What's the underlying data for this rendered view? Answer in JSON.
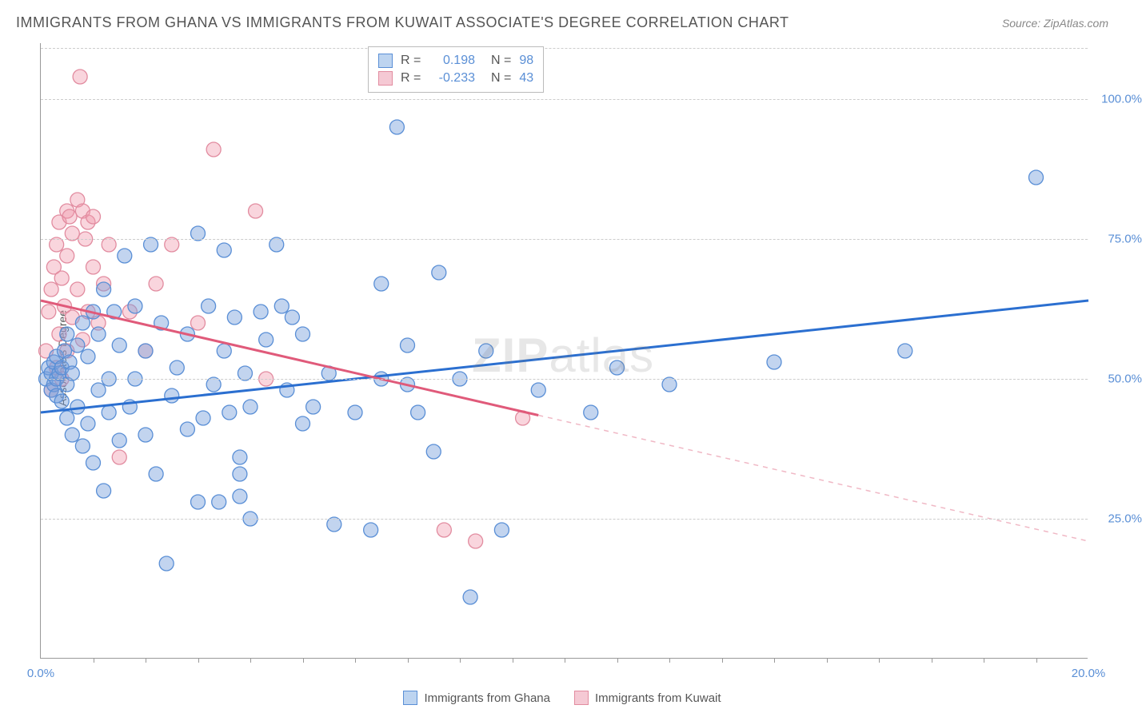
{
  "header": {
    "title": "IMMIGRANTS FROM GHANA VS IMMIGRANTS FROM KUWAIT ASSOCIATE'S DEGREE CORRELATION CHART",
    "source": "Source: ZipAtlas.com"
  },
  "chart": {
    "type": "scatter",
    "ylabel": "Associate's Degree",
    "background_color": "#ffffff",
    "axis_color": "#999999",
    "grid_color": "#cccccc",
    "tick_label_color": "#5a8fd6",
    "text_color": "#555555",
    "xlim": [
      0,
      20
    ],
    "ylim": [
      0,
      110
    ],
    "xtick_labels": [
      "0.0%",
      "20.0%"
    ],
    "xtick_pos": [
      0,
      20
    ],
    "xtick_minor_pos": [
      1,
      2,
      3,
      4,
      5,
      6,
      7,
      8,
      9,
      10,
      11,
      12,
      13,
      14,
      15,
      16,
      17,
      18,
      19
    ],
    "ytick_labels": [
      "25.0%",
      "50.0%",
      "75.0%",
      "100.0%"
    ],
    "ytick_pos": [
      25,
      50,
      75,
      100
    ],
    "series": [
      {
        "key": "ghana",
        "label": "Immigrants from Ghana",
        "color_fill": "rgba(120,160,220,0.45)",
        "color_stroke": "#5a8fd6",
        "swatch_fill": "#bdd4f0",
        "swatch_border": "#5a8fd6",
        "marker_radius": 9,
        "R": "0.198",
        "N": "98",
        "trend": {
          "x1": 0,
          "y1": 44,
          "x2": 20,
          "y2": 64,
          "color": "#2b6fd0",
          "width": 3,
          "dash_extend": false
        },
        "points": [
          [
            0.1,
            50
          ],
          [
            0.15,
            52
          ],
          [
            0.2,
            48
          ],
          [
            0.2,
            51
          ],
          [
            0.25,
            49
          ],
          [
            0.25,
            53
          ],
          [
            0.3,
            47
          ],
          [
            0.3,
            50
          ],
          [
            0.3,
            54
          ],
          [
            0.35,
            51
          ],
          [
            0.4,
            46
          ],
          [
            0.4,
            52
          ],
          [
            0.45,
            55
          ],
          [
            0.5,
            43
          ],
          [
            0.5,
            49
          ],
          [
            0.5,
            58
          ],
          [
            0.55,
            53
          ],
          [
            0.6,
            40
          ],
          [
            0.6,
            51
          ],
          [
            0.7,
            56
          ],
          [
            0.7,
            45
          ],
          [
            0.8,
            38
          ],
          [
            0.8,
            60
          ],
          [
            0.9,
            42
          ],
          [
            0.9,
            54
          ],
          [
            1.0,
            62
          ],
          [
            1.0,
            35
          ],
          [
            1.1,
            48
          ],
          [
            1.1,
            58
          ],
          [
            1.2,
            66
          ],
          [
            1.2,
            30
          ],
          [
            1.3,
            50
          ],
          [
            1.3,
            44
          ],
          [
            1.4,
            62
          ],
          [
            1.5,
            39
          ],
          [
            1.5,
            56
          ],
          [
            1.6,
            72
          ],
          [
            1.7,
            45
          ],
          [
            1.8,
            50
          ],
          [
            1.8,
            63
          ],
          [
            2.0,
            40
          ],
          [
            2.0,
            55
          ],
          [
            2.1,
            74
          ],
          [
            2.2,
            33
          ],
          [
            2.3,
            60
          ],
          [
            2.4,
            17
          ],
          [
            2.5,
            47
          ],
          [
            2.6,
            52
          ],
          [
            2.8,
            41
          ],
          [
            2.8,
            58
          ],
          [
            3.0,
            28
          ],
          [
            3.0,
            76
          ],
          [
            3.1,
            43
          ],
          [
            3.2,
            63
          ],
          [
            3.3,
            49
          ],
          [
            3.4,
            28
          ],
          [
            3.5,
            55
          ],
          [
            3.5,
            73
          ],
          [
            3.6,
            44
          ],
          [
            3.7,
            61
          ],
          [
            3.8,
            29
          ],
          [
            3.8,
            33
          ],
          [
            3.8,
            36
          ],
          [
            3.9,
            51
          ],
          [
            4.0,
            25
          ],
          [
            4.0,
            45
          ],
          [
            4.2,
            62
          ],
          [
            4.3,
            57
          ],
          [
            4.5,
            74
          ],
          [
            4.6,
            63
          ],
          [
            4.7,
            48
          ],
          [
            4.8,
            61
          ],
          [
            5.0,
            42
          ],
          [
            5.0,
            58
          ],
          [
            5.2,
            45
          ],
          [
            5.5,
            51
          ],
          [
            5.6,
            24
          ],
          [
            6.0,
            44
          ],
          [
            6.3,
            23
          ],
          [
            6.5,
            50
          ],
          [
            6.5,
            67
          ],
          [
            6.8,
            95
          ],
          [
            7.0,
            56
          ],
          [
            7.0,
            49
          ],
          [
            7.2,
            44
          ],
          [
            7.5,
            37
          ],
          [
            7.6,
            69
          ],
          [
            8.0,
            50
          ],
          [
            8.2,
            11
          ],
          [
            8.5,
            55
          ],
          [
            8.8,
            23
          ],
          [
            9.5,
            48
          ],
          [
            10.5,
            44
          ],
          [
            11.0,
            52
          ],
          [
            12.0,
            49
          ],
          [
            14.0,
            53
          ],
          [
            16.5,
            55
          ],
          [
            19.0,
            86
          ]
        ]
      },
      {
        "key": "kuwait",
        "label": "Immigrants from Kuwait",
        "color_fill": "rgba(240,150,170,0.40)",
        "color_stroke": "#e28ca0",
        "swatch_fill": "#f5c9d4",
        "swatch_border": "#e28ca0",
        "marker_radius": 9,
        "R": "-0.233",
        "N": "43",
        "trend": {
          "x1": 0,
          "y1": 64,
          "x2": 9.5,
          "y2": 43.5,
          "color": "#e05a7a",
          "width": 3,
          "dash_extend": true,
          "dash_x2": 20,
          "dash_y2": 21,
          "dash_color": "#f0b8c5"
        },
        "points": [
          [
            0.1,
            55
          ],
          [
            0.15,
            62
          ],
          [
            0.2,
            48
          ],
          [
            0.2,
            66
          ],
          [
            0.25,
            70
          ],
          [
            0.3,
            52
          ],
          [
            0.3,
            74
          ],
          [
            0.35,
            58
          ],
          [
            0.35,
            78
          ],
          [
            0.4,
            68
          ],
          [
            0.4,
            50
          ],
          [
            0.45,
            63
          ],
          [
            0.5,
            80
          ],
          [
            0.5,
            72
          ],
          [
            0.5,
            55
          ],
          [
            0.55,
            79
          ],
          [
            0.6,
            61
          ],
          [
            0.6,
            76
          ],
          [
            0.7,
            66
          ],
          [
            0.7,
            82
          ],
          [
            0.75,
            104
          ],
          [
            0.8,
            57
          ],
          [
            0.8,
            80
          ],
          [
            0.85,
            75
          ],
          [
            0.9,
            62
          ],
          [
            0.9,
            78
          ],
          [
            1.0,
            70
          ],
          [
            1.0,
            79
          ],
          [
            1.1,
            60
          ],
          [
            1.2,
            67
          ],
          [
            1.3,
            74
          ],
          [
            1.5,
            36
          ],
          [
            1.7,
            62
          ],
          [
            2.0,
            55
          ],
          [
            2.2,
            67
          ],
          [
            2.5,
            74
          ],
          [
            3.0,
            60
          ],
          [
            3.3,
            91
          ],
          [
            4.1,
            80
          ],
          [
            4.3,
            50
          ],
          [
            7.7,
            23
          ],
          [
            8.3,
            21
          ],
          [
            9.2,
            43
          ]
        ]
      }
    ],
    "legend_top": {
      "R_symbol": "R =",
      "N_symbol": "N ="
    },
    "watermark": "ZIPatlas"
  }
}
